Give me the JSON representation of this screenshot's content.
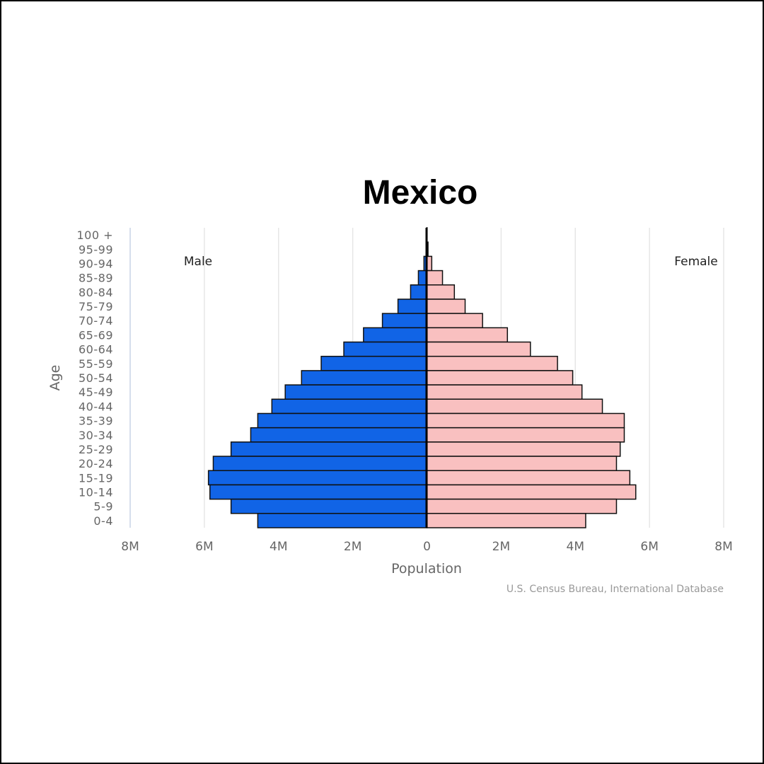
{
  "chart_data": {
    "type": "bar",
    "title": "Mexico",
    "xlabel": "Population",
    "ylabel": "Age",
    "source": "U.S. Census Bureau, International Database",
    "left_label": "Male",
    "right_label": "Female",
    "xlim": [
      -8000000,
      8000000
    ],
    "x_ticks": [
      {
        "value": -8000000,
        "label": "8M"
      },
      {
        "value": -6000000,
        "label": "6M"
      },
      {
        "value": -4000000,
        "label": "4M"
      },
      {
        "value": -2000000,
        "label": "2M"
      },
      {
        "value": 0,
        "label": "0"
      },
      {
        "value": 2000000,
        "label": "2M"
      },
      {
        "value": 4000000,
        "label": "4M"
      },
      {
        "value": 6000000,
        "label": "6M"
      },
      {
        "value": 8000000,
        "label": "8M"
      }
    ],
    "categories": [
      "100 +",
      "95-99",
      "90-94",
      "85-89",
      "80-84",
      "75-79",
      "70-74",
      "65-69",
      "60-64",
      "55-59",
      "50-54",
      "45-49",
      "40-44",
      "35-39",
      "30-34",
      "25-29",
      "20-24",
      "15-19",
      "10-14",
      "5-9",
      "0-4"
    ],
    "series": [
      {
        "name": "Male",
        "color": "#1164e6",
        "values": [
          2000,
          15000,
          80000,
          230000,
          440000,
          780000,
          1200000,
          1710000,
          2240000,
          2850000,
          3380000,
          3820000,
          4180000,
          4560000,
          4750000,
          5280000,
          5760000,
          5890000,
          5850000,
          5280000,
          4560000
        ]
      },
      {
        "name": "Female",
        "color": "#f9c0c0",
        "values": [
          5000,
          30000,
          130000,
          420000,
          740000,
          1030000,
          1500000,
          2170000,
          2790000,
          3520000,
          3930000,
          4180000,
          4730000,
          5320000,
          5320000,
          5210000,
          5110000,
          5470000,
          5630000,
          5110000,
          4280000
        ]
      }
    ]
  }
}
